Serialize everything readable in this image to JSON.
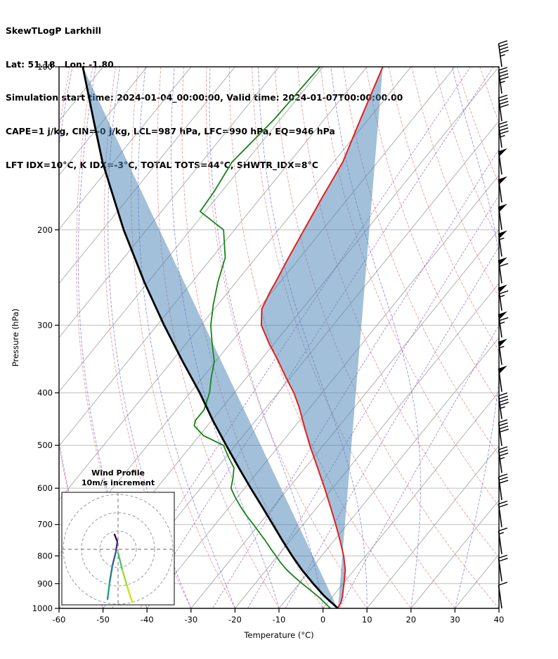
{
  "header": {
    "title": "SkewTLogP Larkhill",
    "location": "Lat: 51.18   Lon: -1.80",
    "times": "Simulation start time: 2024-01-04_00:00:00, Valid time: 2024-01-07T00:00:00.00",
    "indices_line1": "CAPE=1 j/kg, CIN=-0 j/kg, LCL=987 hPa, LFC=990 hPa, EQ=946 hPa",
    "indices_line2": "LFT IDX=10°C, K IDX=-3°C, TOTAL TOTS=44°C, SHWTR_IDX=8°C"
  },
  "axes": {
    "x_label": "Temperature (°C)",
    "y_label": "Pressure (hPa)",
    "x_ticks": [
      -60,
      -50,
      -40,
      -30,
      -20,
      -10,
      0,
      10,
      20,
      30,
      40
    ],
    "y_ticks": [
      100,
      200,
      300,
      400,
      500,
      600,
      700,
      800,
      900,
      1000
    ],
    "pressure_gridlines": [
      200,
      300,
      400,
      500,
      600,
      700,
      800,
      900
    ],
    "x_range": [
      -60,
      40
    ],
    "p_range": [
      100,
      1000
    ],
    "skew_degC_per_decade": 100
  },
  "chart_data": {
    "type": "line",
    "title": "SkewTLogP Larkhill",
    "xlabel": "Temperature (°C)",
    "ylabel": "Pressure (hPa)",
    "x_range": [
      -60,
      40
    ],
    "pressure_range_hPa": [
      100,
      1000
    ],
    "series": [
      {
        "name": "temperature",
        "color": "#e02020",
        "points_p_T": [
          [
            1000,
            3.3
          ],
          [
            975,
            3.0
          ],
          [
            950,
            2.2
          ],
          [
            925,
            1.2
          ],
          [
            900,
            0.2
          ],
          [
            850,
            -2.0
          ],
          [
            800,
            -5.0
          ],
          [
            750,
            -8.6
          ],
          [
            700,
            -12.6
          ],
          [
            650,
            -17.0
          ],
          [
            600,
            -21.8
          ],
          [
            550,
            -27.2
          ],
          [
            500,
            -33.1
          ],
          [
            450,
            -39.3
          ],
          [
            425,
            -42.6
          ],
          [
            400,
            -46.4
          ],
          [
            375,
            -51.0
          ],
          [
            350,
            -55.7
          ],
          [
            325,
            -61.0
          ],
          [
            300,
            -66.3
          ],
          [
            280,
            -69.2
          ],
          [
            260,
            -70.5
          ],
          [
            250,
            -71.0
          ],
          [
            225,
            -72.6
          ],
          [
            200,
            -74.2
          ],
          [
            175,
            -76.0
          ],
          [
            150,
            -77.9
          ],
          [
            125,
            -81.8
          ],
          [
            100,
            -86.4
          ]
        ]
      },
      {
        "name": "dewpoint",
        "color": "#168516",
        "points_p_T": [
          [
            1000,
            1.7
          ],
          [
            975,
            -0.8
          ],
          [
            950,
            -3.4
          ],
          [
            925,
            -6.3
          ],
          [
            900,
            -9.3
          ],
          [
            875,
            -12.3
          ],
          [
            850,
            -15.2
          ],
          [
            825,
            -17.9
          ],
          [
            800,
            -20.4
          ],
          [
            775,
            -23.0
          ],
          [
            750,
            -25.6
          ],
          [
            725,
            -28.4
          ],
          [
            700,
            -31.3
          ],
          [
            675,
            -34.4
          ],
          [
            650,
            -37.4
          ],
          [
            625,
            -40.3
          ],
          [
            600,
            -43.1
          ],
          [
            575,
            -44.5
          ],
          [
            550,
            -46.2
          ],
          [
            525,
            -49.5
          ],
          [
            500,
            -52.7
          ],
          [
            480,
            -59.0
          ],
          [
            460,
            -63.0
          ],
          [
            450,
            -63.7
          ],
          [
            430,
            -63.7
          ],
          [
            400,
            -65.6
          ],
          [
            375,
            -68.0
          ],
          [
            350,
            -70.3
          ],
          [
            325,
            -74.0
          ],
          [
            300,
            -77.8
          ],
          [
            275,
            -81.0
          ],
          [
            250,
            -84.1
          ],
          [
            225,
            -87.0
          ],
          [
            200,
            -92.5
          ],
          [
            185,
            -101.2
          ],
          [
            170,
            -101.7
          ],
          [
            150,
            -103.1
          ],
          [
            125,
            -101.4
          ],
          [
            100,
            -100.7
          ]
        ]
      },
      {
        "name": "parcel_path",
        "color": "#000000",
        "points_p_T": [
          [
            1000,
            3.4
          ],
          [
            950,
            -1.9
          ],
          [
            900,
            -6.8
          ],
          [
            850,
            -11.8
          ],
          [
            800,
            -16.7
          ],
          [
            750,
            -21.7
          ],
          [
            700,
            -26.9
          ],
          [
            650,
            -32.5
          ],
          [
            600,
            -38.6
          ],
          [
            550,
            -45.1
          ],
          [
            500,
            -52.1
          ],
          [
            450,
            -59.7
          ],
          [
            400,
            -67.8
          ],
          [
            350,
            -77.5
          ],
          [
            300,
            -88.4
          ],
          [
            250,
            -100.8
          ],
          [
            200,
            -115.2
          ],
          [
            150,
            -132.5
          ],
          [
            125,
            -142.5
          ],
          [
            100,
            -154.6
          ]
        ]
      }
    ],
    "shading": {
      "between": [
        "parcel_path",
        "temperature"
      ],
      "color": "rgba(70,130,180,0.5)"
    },
    "background_lines": {
      "isotherms": {
        "color": "#b0b0b0",
        "start": -160,
        "end": 40,
        "step": 10
      },
      "dry_adiabats": {
        "color": "#e37f7f",
        "theta_start": -60,
        "theta_end": 140,
        "step": 10
      },
      "moist_adiabats": {
        "color": "#6b6bd6",
        "t_start": -60,
        "t_end": 40,
        "step": 10
      },
      "mixing_ratio_lines": {
        "color": "#9467bd",
        "values_g_kg": [
          0.05,
          0.1,
          0.5,
          1,
          2,
          5
        ]
      },
      "pressure_gridline_color": "#c0c0c0"
    },
    "wind_barbs": [
      [
        100,
        45
      ],
      [
        112,
        45
      ],
      [
        126,
        40
      ],
      [
        141,
        45
      ],
      [
        158,
        50
      ],
      [
        178,
        50
      ],
      [
        200,
        50
      ],
      [
        224,
        55
      ],
      [
        251,
        60
      ],
      [
        282,
        65
      ],
      [
        316,
        65
      ],
      [
        355,
        55
      ],
      [
        398,
        50
      ],
      [
        447,
        45
      ],
      [
        501,
        40
      ],
      [
        562,
        35
      ],
      [
        631,
        30
      ],
      [
        708,
        20
      ],
      [
        794,
        15
      ],
      [
        891,
        20
      ],
      [
        1000,
        10
      ]
    ]
  },
  "wind_profile_inset": {
    "title": "Wind Profile",
    "subtitle": "10m/s increment",
    "ring_radii_ms": [
      10,
      20,
      30
    ],
    "segments": [
      {
        "color": "#440154",
        "points": [
          [
            75,
            60
          ],
          [
            79,
            70
          ]
        ]
      },
      {
        "color": "#46327e",
        "points": [
          [
            79,
            70
          ],
          [
            77,
            84
          ]
        ]
      },
      {
        "color": "#365c8d",
        "points": [
          [
            77,
            84
          ],
          [
            72,
            104
          ]
        ]
      },
      {
        "color": "#277f8e",
        "points": [
          [
            72,
            104
          ],
          [
            68,
            128
          ]
        ]
      },
      {
        "color": "#1fa187",
        "points": [
          [
            68,
            128
          ],
          [
            65,
            152
          ]
        ]
      },
      {
        "color": "#4ac16d",
        "points": [
          [
            80,
            86
          ],
          [
            86,
            110
          ]
        ]
      },
      {
        "color": "#a0da39",
        "points": [
          [
            86,
            110
          ],
          [
            93,
            134
          ]
        ]
      },
      {
        "color": "#d0e11c",
        "points": [
          [
            93,
            134
          ],
          [
            100,
            156
          ]
        ]
      }
    ]
  }
}
